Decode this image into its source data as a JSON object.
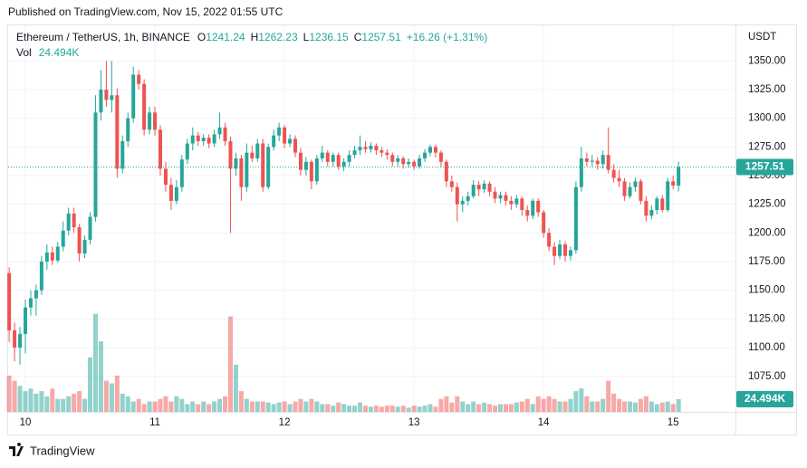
{
  "published": "Published on TradingView.com, Nov 15, 2022 01:55 UTC",
  "brand": "TradingView",
  "chart_data": {
    "type": "candlestick",
    "symbol": "Ethereum / TetherUS, 1h, BINANCE",
    "ohlc_letters": [
      "O",
      "H",
      "L",
      "C"
    ],
    "change": "+16.26 (+1.31%)",
    "volume_title": "Vol",
    "last_volume_label": "24.494K",
    "currency": "USDT",
    "up_color": "#26a69a",
    "down_color": "#ef5350",
    "grid": true,
    "ylim": [
      1044,
      1381
    ],
    "yticks": [
      {
        "value": 1075,
        "label": "1075.00"
      },
      {
        "value": 1100,
        "label": "1100.00"
      },
      {
        "value": 1125,
        "label": "1125.00"
      },
      {
        "value": 1150,
        "label": "1150.00"
      },
      {
        "value": 1175,
        "label": "1175.00"
      },
      {
        "value": 1200,
        "label": "1200.00"
      },
      {
        "value": 1225,
        "label": "1225.00"
      },
      {
        "value": 1250,
        "label": "1250.00"
      },
      {
        "value": 1275,
        "label": "1275.00"
      },
      {
        "value": 1300,
        "label": "1300.00"
      },
      {
        "value": 1325,
        "label": "1325.00"
      },
      {
        "value": 1350,
        "label": "1350.00"
      }
    ],
    "y2lim": [
      0,
      745000
    ],
    "categories": [
      null,
      null,
      null,
      "10",
      null,
      null,
      null,
      null,
      null,
      null,
      null,
      null,
      null,
      null,
      null,
      null,
      null,
      null,
      null,
      null,
      null,
      null,
      null,
      null,
      null,
      null,
      null,
      "11",
      null,
      null,
      null,
      null,
      null,
      null,
      null,
      null,
      null,
      null,
      null,
      null,
      null,
      null,
      null,
      null,
      null,
      null,
      null,
      null,
      null,
      null,
      null,
      "12",
      null,
      null,
      null,
      null,
      null,
      null,
      null,
      null,
      null,
      null,
      null,
      null,
      null,
      null,
      null,
      null,
      null,
      null,
      null,
      null,
      null,
      null,
      null,
      "13",
      null,
      null,
      null,
      null,
      null,
      null,
      null,
      null,
      null,
      null,
      null,
      null,
      null,
      null,
      null,
      null,
      null,
      null,
      null,
      null,
      null,
      null,
      null,
      "14",
      null,
      null,
      null,
      null,
      null,
      null,
      null,
      null,
      null,
      null,
      null,
      null,
      null,
      null,
      null,
      null,
      null,
      null,
      null,
      null,
      null,
      null,
      null,
      "15",
      null
    ],
    "open": [
      1165,
      1115,
      1100,
      1112,
      1135,
      1143,
      1150,
      1175,
      1183,
      1176,
      1188,
      1202,
      1217,
      1205,
      1182,
      1194,
      1214,
      1305,
      1325,
      1316,
      1320,
      1256,
      1280,
      1300,
      1338,
      1330,
      1290,
      1305,
      1290,
      1256,
      1242,
      1228,
      1240,
      1264,
      1278,
      1285,
      1280,
      1283,
      1278,
      1286,
      1292,
      1280,
      1256,
      1265,
      1240,
      1270,
      1265,
      1278,
      1240,
      1275,
      1285,
      1292,
      1278,
      1282,
      1270,
      1255,
      1262,
      1245,
      1265,
      1270,
      1262,
      1268,
      1258,
      1262,
      1268,
      1272,
      1275,
      1273,
      1276,
      1272,
      1270,
      1268,
      1262,
      1265,
      1260,
      1262,
      1258,
      1265,
      1270,
      1275,
      1270,
      1262,
      1245,
      1240,
      1225,
      1228,
      1232,
      1242,
      1238,
      1243,
      1236,
      1230,
      1233,
      1228,
      1225,
      1230,
      1220,
      1215,
      1228,
      1218,
      1200,
      1188,
      1180,
      1190,
      1180,
      1185,
      1240,
      1265,
      1262,
      1263,
      1260,
      1268,
      1255,
      1248,
      1245,
      1232,
      1240,
      1245,
      1228,
      1215,
      1220,
      1230,
      1220,
      1245,
      1241.24
    ],
    "high": [
      1170,
      1122,
      1118,
      1142,
      1150,
      1155,
      1180,
      1190,
      1188,
      1192,
      1210,
      1222,
      1222,
      1208,
      1198,
      1218,
      1320,
      1342,
      1350,
      1350,
      1326,
      1285,
      1305,
      1345,
      1342,
      1334,
      1310,
      1310,
      1294,
      1262,
      1248,
      1246,
      1268,
      1282,
      1292,
      1288,
      1286,
      1286,
      1290,
      1305,
      1296,
      1284,
      1270,
      1268,
      1278,
      1276,
      1282,
      1282,
      1278,
      1290,
      1296,
      1294,
      1286,
      1285,
      1274,
      1266,
      1264,
      1268,
      1276,
      1272,
      1270,
      1270,
      1265,
      1272,
      1276,
      1285,
      1280,
      1279,
      1278,
      1275,
      1273,
      1270,
      1268,
      1267,
      1265,
      1264,
      1268,
      1273,
      1277,
      1277,
      1272,
      1264,
      1250,
      1244,
      1232,
      1236,
      1246,
      1245,
      1246,
      1245,
      1240,
      1236,
      1236,
      1232,
      1233,
      1232,
      1224,
      1230,
      1230,
      1220,
      1204,
      1192,
      1194,
      1193,
      1188,
      1245,
      1275,
      1270,
      1268,
      1266,
      1272,
      1292,
      1260,
      1255,
      1248,
      1244,
      1248,
      1247,
      1232,
      1224,
      1232,
      1233,
      1248,
      1250,
      1262.23
    ],
    "low": [
      1105,
      1088,
      1085,
      1095,
      1128,
      1128,
      1146,
      1168,
      1172,
      1174,
      1184,
      1198,
      1200,
      1175,
      1178,
      1190,
      1210,
      1298,
      1310,
      1305,
      1248,
      1252,
      1275,
      1296,
      1325,
      1285,
      1286,
      1285,
      1250,
      1236,
      1220,
      1225,
      1236,
      1260,
      1272,
      1276,
      1276,
      1274,
      1275,
      1282,
      1276,
      1200,
      1250,
      1228,
      1236,
      1262,
      1262,
      1236,
      1238,
      1272,
      1280,
      1274,
      1275,
      1266,
      1250,
      1250,
      1238,
      1242,
      1262,
      1258,
      1258,
      1255,
      1254,
      1258,
      1265,
      1268,
      1270,
      1270,
      1268,
      1266,
      1264,
      1258,
      1258,
      1256,
      1257,
      1255,
      1256,
      1262,
      1267,
      1266,
      1258,
      1240,
      1236,
      1210,
      1218,
      1224,
      1230,
      1232,
      1235,
      1232,
      1226,
      1226,
      1224,
      1220,
      1222,
      1215,
      1210,
      1212,
      1214,
      1196,
      1184,
      1172,
      1177,
      1175,
      1176,
      1182,
      1236,
      1258,
      1258,
      1255,
      1256,
      1252,
      1244,
      1240,
      1228,
      1230,
      1236,
      1225,
      1210,
      1212,
      1216,
      1218,
      1218,
      1238,
      1236.15
    ],
    "close": [
      1115,
      1100,
      1112,
      1135,
      1143,
      1150,
      1175,
      1183,
      1176,
      1188,
      1202,
      1217,
      1205,
      1182,
      1194,
      1214,
      1305,
      1325,
      1316,
      1320,
      1256,
      1280,
      1300,
      1338,
      1330,
      1290,
      1305,
      1290,
      1256,
      1242,
      1228,
      1240,
      1264,
      1278,
      1285,
      1280,
      1283,
      1278,
      1286,
      1292,
      1280,
      1256,
      1265,
      1240,
      1270,
      1265,
      1278,
      1240,
      1275,
      1285,
      1292,
      1278,
      1282,
      1270,
      1255,
      1262,
      1245,
      1265,
      1270,
      1262,
      1268,
      1258,
      1262,
      1268,
      1272,
      1275,
      1273,
      1276,
      1272,
      1270,
      1268,
      1262,
      1265,
      1260,
      1262,
      1258,
      1265,
      1270,
      1275,
      1270,
      1262,
      1245,
      1240,
      1225,
      1228,
      1232,
      1242,
      1238,
      1243,
      1236,
      1230,
      1233,
      1228,
      1225,
      1230,
      1220,
      1215,
      1228,
      1218,
      1200,
      1188,
      1180,
      1190,
      1180,
      1185,
      1240,
      1265,
      1262,
      1263,
      1260,
      1268,
      1255,
      1248,
      1245,
      1232,
      1240,
      1245,
      1228,
      1215,
      1220,
      1230,
      1220,
      1245,
      1241.24,
      1257.51
    ],
    "volume": [
      70000,
      60000,
      50000,
      40000,
      45000,
      35000,
      40000,
      30000,
      45000,
      25000,
      25000,
      30000,
      35000,
      40000,
      25000,
      105000,
      189000,
      136000,
      60000,
      55000,
      70000,
      35000,
      30000,
      20000,
      25000,
      15000,
      20000,
      20000,
      25000,
      30000,
      20000,
      30000,
      25000,
      15000,
      20000,
      15000,
      20000,
      15000,
      20000,
      25000,
      30000,
      184000,
      91000,
      40000,
      25000,
      20000,
      20000,
      20000,
      18000,
      15000,
      18000,
      20000,
      15000,
      20000,
      25000,
      20000,
      25000,
      20000,
      15000,
      15000,
      12000,
      18000,
      15000,
      12000,
      12000,
      18000,
      12000,
      10000,
      12000,
      10000,
      12000,
      12000,
      10000,
      12000,
      8000,
      12000,
      10000,
      12000,
      15000,
      10000,
      25000,
      30000,
      18000,
      30000,
      20000,
      15000,
      20000,
      15000,
      18000,
      15000,
      12000,
      15000,
      15000,
      15000,
      18000,
      20000,
      25000,
      15000,
      30000,
      25000,
      30000,
      25000,
      20000,
      20000,
      25000,
      40000,
      45000,
      30000,
      20000,
      20000,
      25000,
      60000,
      35000,
      25000,
      20000,
      20000,
      18000,
      25000,
      30000,
      20000,
      15000,
      18000,
      20000,
      15000,
      24494
    ]
  }
}
